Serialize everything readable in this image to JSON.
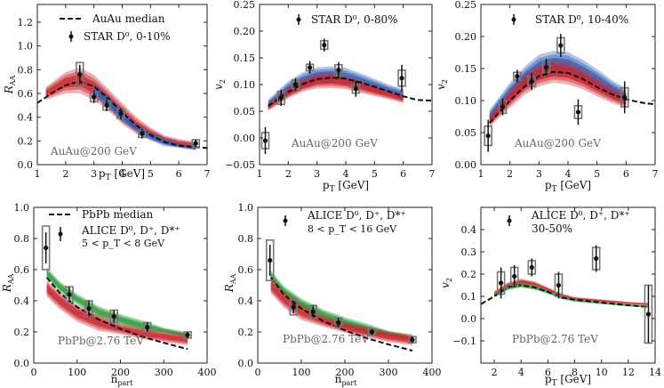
{
  "figure": {
    "colors": {
      "red": "#c8242c",
      "blue": "#2f5fb8",
      "green": "#2e9b3a",
      "data": "#111111",
      "sys": "#777777",
      "median": "#111111",
      "label": "#666666"
    }
  },
  "chart_data": [
    {
      "type": "line",
      "id": "raa_auau",
      "xlabel": "p_T [GeV]",
      "ylabel": "R_AA",
      "xlim": [
        1,
        7
      ],
      "ylim": [
        0,
        1.35
      ],
      "xticks": [
        1,
        2,
        3,
        4,
        5,
        6,
        7
      ],
      "yticks": [
        0.0,
        0.2,
        0.4,
        0.6,
        0.8,
        1.0,
        1.2
      ],
      "xtick_labels": [
        "1",
        "2",
        "3",
        "4",
        "5",
        "6",
        "7"
      ],
      "ytick_labels": [
        "0.0",
        "0.2",
        "0.4",
        "0.6",
        "0.8",
        "1.0",
        "1.2"
      ],
      "system_label": "AuAu@200 GeV",
      "legend": [
        "AuAu median",
        "STAR D⁰, 0-10%"
      ],
      "median": {
        "x": [
          1,
          1.5,
          2,
          2.5,
          3,
          3.5,
          4,
          4.5,
          5,
          5.5,
          6,
          6.5,
          7
        ],
        "y": [
          0.52,
          0.6,
          0.67,
          0.7,
          0.66,
          0.56,
          0.44,
          0.33,
          0.25,
          0.19,
          0.16,
          0.15,
          0.14
        ]
      },
      "bands": [
        {
          "color": "red",
          "x": [
            1.3,
            2,
            2.5,
            3,
            3.5,
            4,
            4.5,
            5,
            5.5,
            6,
            6.6
          ],
          "center": [
            0.6,
            0.69,
            0.71,
            0.65,
            0.55,
            0.43,
            0.33,
            0.26,
            0.21,
            0.18,
            0.16
          ],
          "half": [
            0.03,
            0.05,
            0.06,
            0.06,
            0.05,
            0.05,
            0.04,
            0.03,
            0.02,
            0.02,
            0.02
          ]
        },
        {
          "color": "blue",
          "x": [
            3,
            3.5,
            4,
            4.5,
            5,
            5.5,
            6,
            6.6
          ],
          "center": [
            0.63,
            0.53,
            0.41,
            0.31,
            0.24,
            0.19,
            0.16,
            0.14
          ],
          "half": [
            0.03,
            0.03,
            0.03,
            0.02,
            0.02,
            0.02,
            0.01,
            0.01
          ]
        }
      ],
      "points": [
        {
          "x": 2.5,
          "y": 0.76,
          "err": 0.08,
          "sys": 0.1
        },
        {
          "x": 3.0,
          "y": 0.57,
          "err": 0.05,
          "sys": 0.04
        },
        {
          "x": 3.45,
          "y": 0.5,
          "err": 0.05,
          "sys": 0.04
        },
        {
          "x": 3.95,
          "y": 0.43,
          "err": 0.05,
          "sys": 0.04
        },
        {
          "x": 4.7,
          "y": 0.26,
          "err": 0.04,
          "sys": 0.03
        },
        {
          "x": 6.6,
          "y": 0.18,
          "err": 0.03,
          "sys": 0.03
        }
      ]
    },
    {
      "type": "line",
      "id": "v2_auau_0_80",
      "xlabel": "p_T [GeV]",
      "ylabel": "v_2",
      "xlim": [
        1,
        7
      ],
      "ylim": [
        -0.05,
        0.25
      ],
      "xticks": [
        1,
        2,
        3,
        4,
        5,
        6,
        7
      ],
      "yticks": [
        -0.05,
        0.0,
        0.05,
        0.1,
        0.15,
        0.2,
        0.25
      ],
      "xtick_labels": [
        "1",
        "2",
        "3",
        "4",
        "5",
        "6",
        "7"
      ],
      "ytick_labels": [
        "−0.05",
        "0.00",
        "0.05",
        "0.10",
        "0.15",
        "0.20",
        "0.25"
      ],
      "system_label": "AuAu@200 GeV",
      "legend": [
        "STAR D⁰, 0-80%"
      ],
      "median": {
        "x": [
          1.3,
          2,
          2.5,
          3,
          3.5,
          4,
          4.5,
          5,
          5.5,
          6,
          6.5,
          7
        ],
        "y": [
          0.06,
          0.086,
          0.101,
          0.11,
          0.113,
          0.111,
          0.104,
          0.096,
          0.087,
          0.078,
          0.071,
          0.07
        ]
      },
      "bands": [
        {
          "color": "blue",
          "x": [
            1.3,
            2,
            2.5,
            3,
            3.5,
            4,
            4.5,
            5,
            5.5,
            6
          ],
          "center": [
            0.063,
            0.092,
            0.107,
            0.116,
            0.118,
            0.115,
            0.107,
            0.098,
            0.089,
            0.081
          ],
          "half": [
            0.005,
            0.008,
            0.009,
            0.009,
            0.009,
            0.009,
            0.008,
            0.007,
            0.006,
            0.006
          ]
        },
        {
          "color": "red",
          "x": [
            1.3,
            2,
            2.5,
            3,
            3.5,
            4,
            4.5,
            5,
            5.5,
            6
          ],
          "center": [
            0.058,
            0.085,
            0.099,
            0.107,
            0.108,
            0.104,
            0.097,
            0.089,
            0.081,
            0.074
          ],
          "half": [
            0.004,
            0.006,
            0.007,
            0.008,
            0.008,
            0.007,
            0.007,
            0.006,
            0.005,
            0.005
          ]
        }
      ],
      "points": [
        {
          "x": 1.2,
          "y": -0.005,
          "err": 0.025,
          "sys": 0.015
        },
        {
          "x": 1.75,
          "y": 0.075,
          "err": 0.015,
          "sys": 0.012
        },
        {
          "x": 2.25,
          "y": 0.1,
          "err": 0.012,
          "sys": 0.008
        },
        {
          "x": 2.75,
          "y": 0.132,
          "err": 0.012,
          "sys": 0.006
        },
        {
          "x": 3.25,
          "y": 0.174,
          "err": 0.012,
          "sys": 0.008
        },
        {
          "x": 3.75,
          "y": 0.127,
          "err": 0.015,
          "sys": 0.01
        },
        {
          "x": 4.35,
          "y": 0.092,
          "err": 0.015,
          "sys": 0.008
        },
        {
          "x": 5.95,
          "y": 0.112,
          "err": 0.025,
          "sys": 0.015
        }
      ]
    },
    {
      "type": "line",
      "id": "v2_auau_10_40",
      "xlabel": "p_T [GeV]",
      "ylabel": "v_2",
      "xlim": [
        1,
        7
      ],
      "ylim": [
        0,
        0.25
      ],
      "xticks": [
        1,
        2,
        3,
        4,
        5,
        6,
        7
      ],
      "yticks": [
        0.0,
        0.05,
        0.1,
        0.15,
        0.2,
        0.25
      ],
      "xtick_labels": [
        "1",
        "2",
        "3",
        "4",
        "5",
        "6",
        "7"
      ],
      "ytick_labels": [
        "0.00",
        "0.05",
        "0.10",
        "0.15",
        "0.20",
        "0.25"
      ],
      "system_label": "AuAu@200 GeV",
      "legend": [
        "STAR D⁰, 10-40%"
      ],
      "median": {
        "x": [
          1.3,
          2,
          2.5,
          3,
          3.5,
          4,
          4.5,
          5,
          5.5,
          6,
          6.5,
          7
        ],
        "y": [
          0.065,
          0.1,
          0.122,
          0.138,
          0.145,
          0.143,
          0.134,
          0.121,
          0.11,
          0.102,
          0.097,
          0.094
        ]
      },
      "bands": [
        {
          "color": "blue",
          "x": [
            1.3,
            2,
            2.5,
            3,
            3.5,
            4,
            4.5,
            5,
            5.5,
            6
          ],
          "center": [
            0.075,
            0.112,
            0.135,
            0.152,
            0.158,
            0.156,
            0.146,
            0.133,
            0.118,
            0.106
          ],
          "half": [
            0.006,
            0.009,
            0.01,
            0.011,
            0.011,
            0.011,
            0.01,
            0.009,
            0.008,
            0.007
          ]
        },
        {
          "color": "red",
          "x": [
            1.3,
            2,
            2.5,
            3,
            3.5,
            4,
            4.5,
            5,
            5.5,
            6
          ],
          "center": [
            0.068,
            0.103,
            0.125,
            0.14,
            0.146,
            0.143,
            0.134,
            0.121,
            0.109,
            0.099
          ],
          "half": [
            0.005,
            0.008,
            0.009,
            0.01,
            0.01,
            0.01,
            0.009,
            0.008,
            0.007,
            0.006
          ]
        }
      ],
      "points": [
        {
          "x": 1.25,
          "y": 0.045,
          "err": 0.025,
          "sys": 0.015
        },
        {
          "x": 1.75,
          "y": 0.09,
          "err": 0.013,
          "sys": 0.01
        },
        {
          "x": 2.25,
          "y": 0.138,
          "err": 0.01,
          "sys": 0.006
        },
        {
          "x": 2.75,
          "y": 0.13,
          "err": 0.013,
          "sys": 0.008
        },
        {
          "x": 3.25,
          "y": 0.152,
          "err": 0.013,
          "sys": 0.008
        },
        {
          "x": 3.75,
          "y": 0.186,
          "err": 0.018,
          "sys": 0.012
        },
        {
          "x": 4.35,
          "y": 0.082,
          "err": 0.02,
          "sys": 0.01
        },
        {
          "x": 5.95,
          "y": 0.105,
          "err": 0.025,
          "sys": 0.015
        }
      ]
    },
    {
      "type": "line",
      "id": "raa_pbpb_5_8",
      "xlabel": "n_part",
      "ylabel": "R_AA",
      "xlim": [
        0,
        400
      ],
      "ylim": [
        0,
        1.0
      ],
      "xticks": [
        0,
        100,
        200,
        300,
        400
      ],
      "yticks": [
        0.0,
        0.2,
        0.4,
        0.6,
        0.8,
        1.0
      ],
      "xtick_labels": [
        "0",
        "100",
        "200",
        "300",
        "400"
      ],
      "ytick_labels": [
        "0.0",
        "0.2",
        "0.4",
        "0.6",
        "0.8",
        "1.0"
      ],
      "system_label": "PbPb@2.76 TeV",
      "legend": [
        "PbPb median",
        "ALICE D⁰, D⁺, D*⁺",
        "5 < p_T < 8 GeV"
      ],
      "median": {
        "x": [
          30,
          60,
          100,
          150,
          200,
          250,
          300,
          355
        ],
        "y": [
          0.55,
          0.45,
          0.36,
          0.28,
          0.22,
          0.17,
          0.13,
          0.09
        ]
      },
      "bands": [
        {
          "color": "green",
          "x": [
            30,
            60,
            100,
            150,
            200,
            250,
            300,
            355
          ],
          "center": [
            0.58,
            0.49,
            0.41,
            0.33,
            0.28,
            0.24,
            0.21,
            0.18
          ],
          "half": [
            0.02,
            0.02,
            0.02,
            0.02,
            0.02,
            0.02,
            0.01,
            0.01
          ]
        },
        {
          "color": "red",
          "x": [
            30,
            60,
            100,
            150,
            200,
            250,
            300,
            355
          ],
          "center": [
            0.48,
            0.4,
            0.32,
            0.26,
            0.22,
            0.19,
            0.17,
            0.15
          ],
          "half": [
            0.03,
            0.03,
            0.03,
            0.03,
            0.02,
            0.02,
            0.02,
            0.02
          ]
        }
      ],
      "points": [
        {
          "x": 28,
          "y": 0.74,
          "err": 0.1,
          "sys": 0.14
        },
        {
          "x": 82,
          "y": 0.44,
          "err": 0.05,
          "sys": 0.05
        },
        {
          "x": 127,
          "y": 0.35,
          "err": 0.05,
          "sys": 0.05
        },
        {
          "x": 185,
          "y": 0.3,
          "err": 0.04,
          "sys": 0.04
        },
        {
          "x": 262,
          "y": 0.23,
          "err": 0.03,
          "sys": 0.03
        },
        {
          "x": 355,
          "y": 0.18,
          "err": 0.02,
          "sys": 0.02
        }
      ]
    },
    {
      "type": "line",
      "id": "raa_pbpb_8_16",
      "xlabel": "n_part",
      "ylabel": "R_AA",
      "xlim": [
        0,
        400
      ],
      "ylim": [
        0,
        1.0
      ],
      "xticks": [
        0,
        100,
        200,
        300,
        400
      ],
      "yticks": [
        0.0,
        0.2,
        0.4,
        0.6,
        0.8,
        1.0
      ],
      "xtick_labels": [
        "0",
        "100",
        "200",
        "300",
        "400"
      ],
      "ytick_labels": [
        "0.0",
        "0.2",
        "0.4",
        "0.6",
        "0.8",
        "1.0"
      ],
      "system_label": "PbPb@2.76 TeV",
      "legend": [
        "ALICE D⁰, D⁺, D*⁺",
        "8 < p_T < 16 GeV"
      ],
      "median": {
        "x": [
          30,
          60,
          100,
          150,
          200,
          250,
          300,
          355
        ],
        "y": [
          0.55,
          0.44,
          0.35,
          0.27,
          0.21,
          0.16,
          0.12,
          0.08
        ]
      },
      "bands": [
        {
          "color": "green",
          "x": [
            30,
            60,
            100,
            150,
            200,
            250,
            300,
            355
          ],
          "center": [
            0.56,
            0.46,
            0.38,
            0.31,
            0.26,
            0.22,
            0.19,
            0.16
          ],
          "half": [
            0.02,
            0.02,
            0.02,
            0.02,
            0.02,
            0.02,
            0.01,
            0.01
          ]
        },
        {
          "color": "red",
          "x": [
            30,
            60,
            100,
            150,
            200,
            250,
            300,
            355
          ],
          "center": [
            0.5,
            0.41,
            0.33,
            0.27,
            0.23,
            0.2,
            0.17,
            0.15
          ],
          "half": [
            0.03,
            0.03,
            0.03,
            0.02,
            0.02,
            0.02,
            0.02,
            0.02
          ]
        }
      ],
      "points": [
        {
          "x": 28,
          "y": 0.66,
          "err": 0.1,
          "sys": 0.13
        },
        {
          "x": 82,
          "y": 0.36,
          "err": 0.04,
          "sys": 0.05
        },
        {
          "x": 127,
          "y": 0.33,
          "err": 0.04,
          "sys": 0.04
        },
        {
          "x": 185,
          "y": 0.26,
          "err": 0.03,
          "sys": 0.03
        },
        {
          "x": 262,
          "y": 0.2,
          "err": 0.02,
          "sys": 0.02
        },
        {
          "x": 355,
          "y": 0.15,
          "err": 0.02,
          "sys": 0.02
        }
      ]
    },
    {
      "type": "line",
      "id": "v2_pbpb_30_50",
      "xlabel": "p_T [GeV]",
      "ylabel": "v_2",
      "xlim": [
        1,
        14
      ],
      "ylim": [
        -0.2,
        0.5
      ],
      "xticks": [
        2,
        4,
        6,
        8,
        10,
        12,
        14
      ],
      "yticks": [
        -0.1,
        0.0,
        0.1,
        0.2,
        0.3,
        0.4
      ],
      "xtick_labels": [
        "2",
        "4",
        "6",
        "8",
        "10",
        "12",
        "14"
      ],
      "ytick_labels": [
        "−0.1",
        "0.0",
        "0.1",
        "0.2",
        "0.3",
        "0.4"
      ],
      "system_label": "PbPb@2.76 TeV",
      "legend": [
        "ALICE D⁰, D⁺, D*⁺",
        "30-50%"
      ],
      "median": {
        "x": [
          1,
          2,
          3,
          3.5,
          4,
          5,
          6,
          7,
          8,
          10,
          12,
          13.5
        ],
        "y": [
          0.065,
          0.1,
          0.14,
          0.15,
          0.15,
          0.14,
          0.12,
          0.095,
          0.085,
          0.072,
          0.06,
          0.052
        ]
      },
      "bands": [
        {
          "color": "red",
          "x": [
            2,
            3,
            4,
            5,
            6,
            7,
            8,
            10,
            12,
            13.5
          ],
          "center": [
            0.112,
            0.15,
            0.165,
            0.155,
            0.13,
            0.105,
            0.09,
            0.08,
            0.07,
            0.065
          ],
          "half": [
            0.006,
            0.007,
            0.008,
            0.007,
            0.006,
            0.005,
            0.004,
            0.004,
            0.003,
            0.003
          ]
        },
        {
          "color": "green",
          "x": [
            2,
            3,
            4,
            5,
            6,
            7,
            8,
            10,
            12,
            13.5
          ],
          "center": [
            0.105,
            0.138,
            0.15,
            0.14,
            0.12,
            0.095,
            0.082,
            0.07,
            0.06,
            0.055
          ],
          "half": [
            0.005,
            0.006,
            0.006,
            0.006,
            0.005,
            0.004,
            0.004,
            0.003,
            0.003,
            0.003
          ]
        }
      ],
      "points": [
        {
          "x": 2.5,
          "y": 0.16,
          "err": 0.07,
          "sys": 0.05
        },
        {
          "x": 3.5,
          "y": 0.19,
          "err": 0.05,
          "sys": 0.04
        },
        {
          "x": 4.8,
          "y": 0.23,
          "err": 0.04,
          "sys": 0.03
        },
        {
          "x": 6.8,
          "y": 0.15,
          "err": 0.06,
          "sys": 0.05
        },
        {
          "x": 9.6,
          "y": 0.27,
          "err": 0.06,
          "sys": 0.05
        },
        {
          "x": 13.5,
          "y": 0.02,
          "err": 0.13,
          "sys": 0.13
        }
      ]
    }
  ]
}
